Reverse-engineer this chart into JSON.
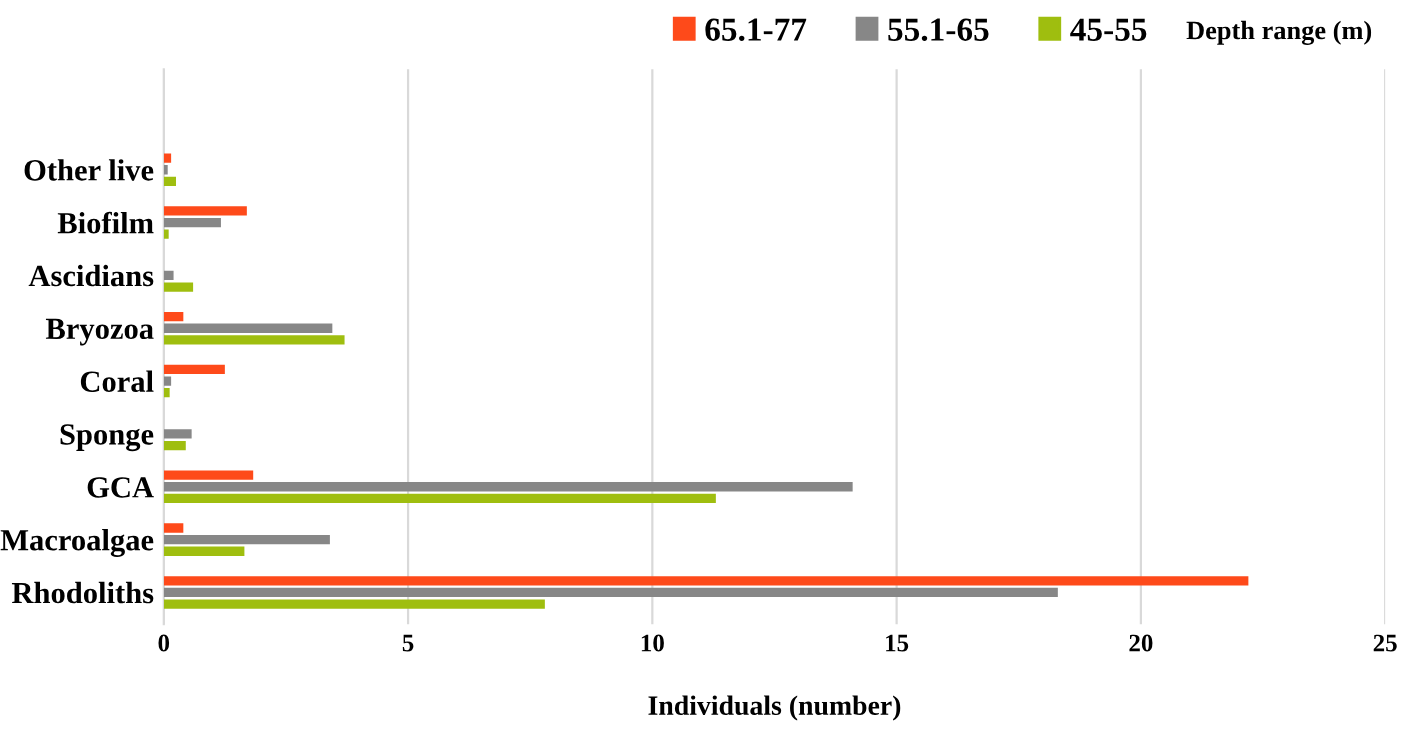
{
  "chart_data": {
    "type": "bar",
    "orientation": "horizontal",
    "xlabel": "Individuals (number)",
    "legend_title": "Depth range (m)",
    "categories": [
      "Other live",
      "Biofilm",
      "Ascidians",
      "Bryozoa",
      "Coral",
      "Sponge",
      "GCA",
      "Macroalgae",
      "Rhodoliths"
    ],
    "series": [
      {
        "name": "65.1-77",
        "color": "#fe4a1a",
        "values": [
          0.15,
          1.7,
          0,
          0.4,
          1.25,
          0,
          1.83,
          0.4,
          22.2
        ]
      },
      {
        "name": "55.1-65",
        "color": "#878787",
        "values": [
          0.08,
          1.17,
          0.2,
          3.45,
          0.15,
          0.57,
          14.1,
          3.4,
          18.3
        ]
      },
      {
        "name": "45-55",
        "color": "#9fbe0f",
        "values": [
          0.25,
          0.1,
          0.6,
          3.7,
          0.12,
          0.45,
          11.3,
          1.65,
          7.8
        ]
      }
    ],
    "xlim": [
      0,
      25
    ],
    "xticks": [
      0,
      5,
      10,
      15,
      20,
      25
    ],
    "grid": "x",
    "legend": "top right"
  }
}
